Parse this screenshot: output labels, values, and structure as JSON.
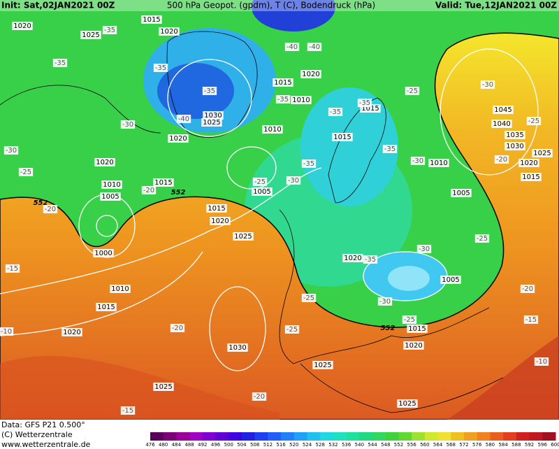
{
  "header": {
    "init": "Init: Sat,02JAN2021 00Z",
    "title": "500 hPa Geopot. (gpdm), T (C), Bodendruck (hPa)",
    "valid": "Valid: Tue,12JAN2021 00Z"
  },
  "footer": {
    "data": "Data: GFS P21 0.500°",
    "copyright": "(C) Wetterzentrale",
    "url": "www.wetterzentrale.de"
  },
  "colorbar": {
    "labels": [
      "476",
      "480",
      "484",
      "488",
      "492",
      "496",
      "500",
      "504",
      "508",
      "512",
      "516",
      "520",
      "524",
      "528",
      "532",
      "536",
      "540",
      "544",
      "548",
      "552",
      "556",
      "560",
      "564",
      "568",
      "572",
      "576",
      "580",
      "584",
      "588",
      "592",
      "596",
      "600"
    ]
  },
  "isobar_labels": [
    "1020",
    "1025",
    "1015",
    "1020",
    "1015",
    "1010",
    "1020",
    "1030",
    "1025",
    "1020",
    "1010",
    "1015",
    "1015",
    "1045",
    "1040",
    "1035",
    "1030",
    "1025",
    "1020",
    "1015",
    "1010",
    "1005",
    "1020",
    "1010",
    "1005",
    "1015",
    "1005",
    "1015",
    "1020",
    "1025",
    "1000",
    "1010",
    "1015",
    "1020",
    "1030",
    "1025",
    "1025",
    "1025",
    "1020",
    "1005",
    "1015",
    "1020"
  ],
  "temperature_labels": [
    "-35",
    "-35",
    "-35",
    "-35",
    "-30",
    "-30",
    "-25",
    "-20",
    "-20",
    "-25",
    "-30",
    "-35",
    "-35",
    "-30",
    "-25",
    "-30",
    "-25",
    "-20",
    "-25",
    "-30",
    "-35",
    "-30",
    "-25",
    "-20",
    "-15",
    "-10",
    "-25",
    "-25",
    "-20",
    "-15",
    "-10",
    "-15",
    "-20",
    "-40",
    "-40",
    "-40",
    "-35",
    "-35",
    "-35"
  ],
  "geopotential_labels": [
    "552",
    "552",
    "552"
  ]
}
